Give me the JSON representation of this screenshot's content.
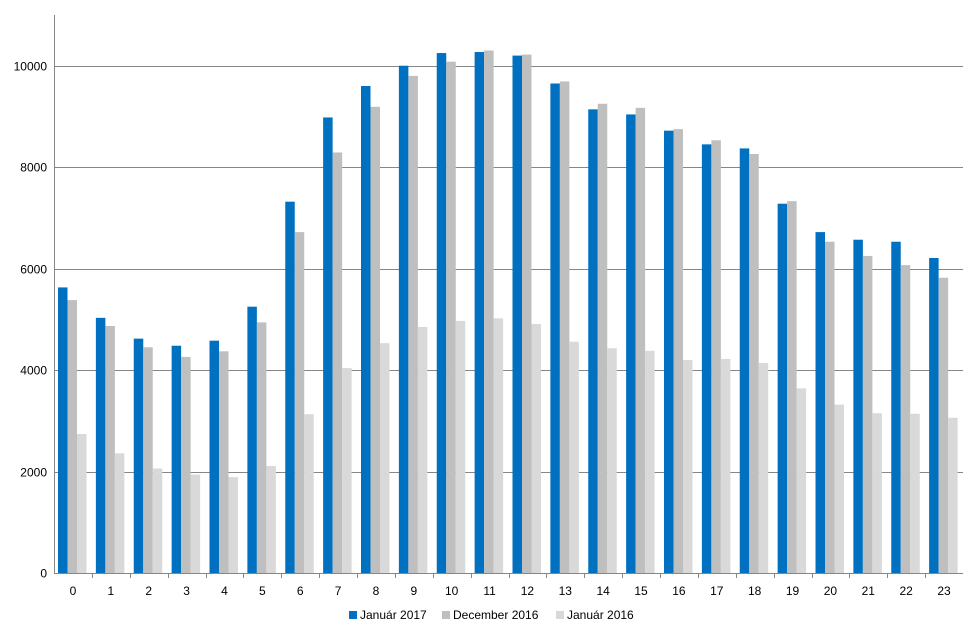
{
  "chart_data": {
    "type": "bar",
    "title": "",
    "xlabel": "",
    "ylabel": "",
    "ylim": [
      0,
      11000
    ],
    "yticks": [
      0,
      2000,
      4000,
      6000,
      8000,
      10000
    ],
    "grid": true,
    "legend_position": "bottom",
    "categories": [
      "0",
      "1",
      "2",
      "3",
      "4",
      "5",
      "6",
      "7",
      "8",
      "9",
      "10",
      "11",
      "12",
      "13",
      "14",
      "15",
      "16",
      "17",
      "18",
      "19",
      "20",
      "21",
      "22",
      "23"
    ],
    "series": [
      {
        "name": "Január 2017",
        "color": "#0070C0",
        "values": [
          5630,
          5030,
          4620,
          4480,
          4580,
          5250,
          7320,
          8980,
          9600,
          10000,
          10250,
          10270,
          10200,
          9650,
          9140,
          9040,
          8720,
          8450,
          8370,
          7280,
          6720,
          6570,
          6530,
          6210
        ]
      },
      {
        "name": "December 2016",
        "color": "#BFBFBF",
        "values": [
          5380,
          4870,
          4450,
          4260,
          4370,
          4940,
          6720,
          8290,
          9190,
          9800,
          10080,
          10300,
          10220,
          9690,
          9250,
          9170,
          8750,
          8530,
          8260,
          7330,
          6530,
          6250,
          6070,
          5820
        ]
      },
      {
        "name": "Január 2016",
        "color": "#D9D9D9",
        "values": [
          2740,
          2360,
          2060,
          1940,
          1890,
          2110,
          3130,
          4040,
          4530,
          4850,
          4970,
          5020,
          4910,
          4560,
          4430,
          4380,
          4200,
          4220,
          4140,
          3640,
          3320,
          3150,
          3140,
          3060
        ]
      }
    ]
  }
}
